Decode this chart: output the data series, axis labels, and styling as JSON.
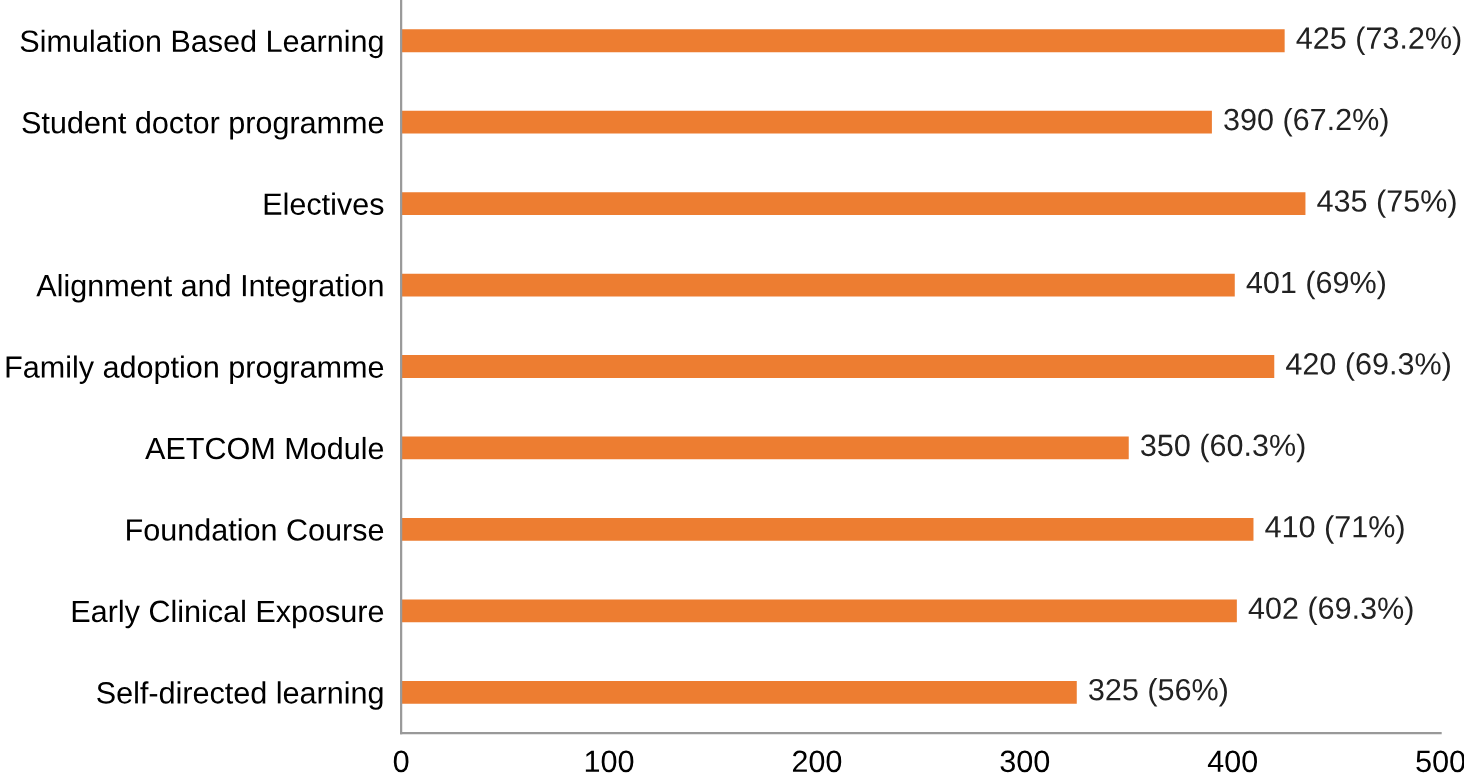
{
  "chart_data": {
    "type": "bar",
    "orientation": "horizontal",
    "categories": [
      "Simulation Based Learning",
      "Student doctor programme",
      "Electives",
      "Alignment and Integration",
      "Family adoption programme",
      "AETCOM Module",
      "Foundation Course",
      "Early Clinical Exposure",
      "Self-directed learning"
    ],
    "values": [
      425,
      390,
      435,
      401,
      420,
      350,
      410,
      402,
      325
    ],
    "value_labels": [
      "425 (73.2%)",
      "390 (67.2%)",
      "435 (75%)",
      "401 (69%)",
      "420 (69.3%)",
      "350 (60.3%)",
      "410 (71%)",
      "402 (69.3%)",
      "325 (56%)"
    ],
    "color": "#ed7d31",
    "xlim": [
      0,
      500
    ],
    "xticks": [
      0,
      100,
      200,
      300,
      400,
      500
    ],
    "grid": false,
    "legend": false
  }
}
